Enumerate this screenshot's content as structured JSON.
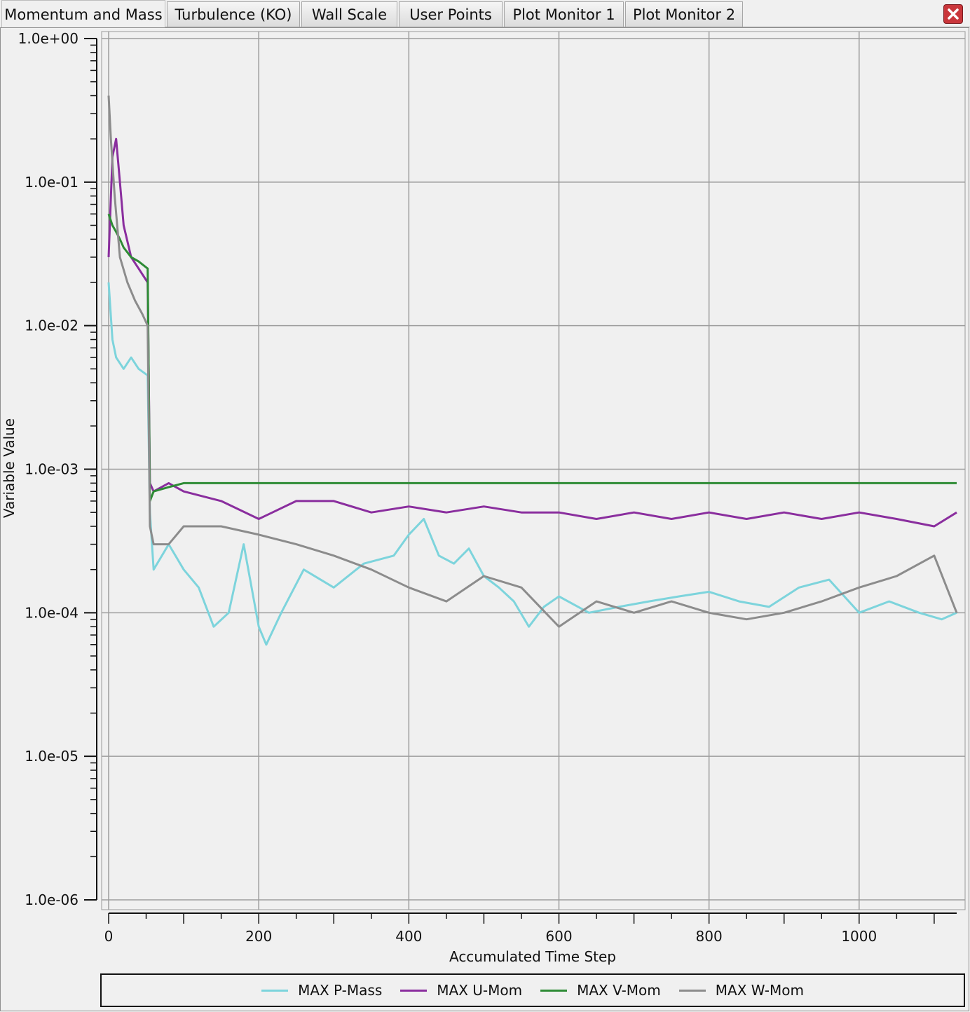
{
  "tabs": [
    {
      "label": "Momentum and Mass",
      "active": true
    },
    {
      "label": "Turbulence (KO)",
      "active": false
    },
    {
      "label": "Wall Scale",
      "active": false
    },
    {
      "label": "User Points",
      "active": false
    },
    {
      "label": "Plot Monitor 1",
      "active": false
    },
    {
      "label": "Plot Monitor 2",
      "active": false
    }
  ],
  "close_icon": "close-icon",
  "chart_data": {
    "type": "line",
    "title": "",
    "xlabel": "Accumulated Time Step",
    "ylabel": "Variable Value",
    "xlim": [
      0,
      1130
    ],
    "ylim": [
      1e-06,
      1
    ],
    "yscale": "log",
    "grid": true,
    "legend_position": "bottom",
    "x_ticks": [
      0,
      200,
      400,
      600,
      800,
      1000
    ],
    "x_tick_labels": [
      "0",
      "200",
      "400",
      "600",
      "800",
      "1000"
    ],
    "y_ticks": [
      1,
      0.1,
      0.01,
      0.001,
      0.0001,
      1e-05,
      1e-06
    ],
    "y_tick_labels": [
      "1.0e+00",
      "1.0e-01",
      "1.0e-02",
      "1.0e-03",
      "1.0e-04",
      "1.0e-05",
      "1.0e-06"
    ],
    "series": [
      {
        "name": "MAX P-Mass",
        "color": "#7dd4dc",
        "x": [
          0,
          5,
          10,
          20,
          30,
          40,
          52,
          55,
          60,
          80,
          100,
          120,
          140,
          160,
          180,
          200,
          210,
          230,
          260,
          300,
          340,
          380,
          400,
          420,
          440,
          460,
          480,
          500,
          520,
          540,
          560,
          580,
          600,
          640,
          680,
          720,
          760,
          800,
          840,
          880,
          920,
          960,
          1000,
          1040,
          1080,
          1110,
          1130
        ],
        "y": [
          0.02,
          0.008,
          0.006,
          0.005,
          0.006,
          0.005,
          0.0045,
          0.0005,
          0.0002,
          0.0003,
          0.0002,
          0.00015,
          8e-05,
          0.0001,
          0.0003,
          8e-05,
          6e-05,
          0.0001,
          0.0002,
          0.00015,
          0.00022,
          0.00025,
          0.00035,
          0.00045,
          0.00025,
          0.00022,
          0.00028,
          0.00018,
          0.00015,
          0.00012,
          8e-05,
          0.00011,
          0.00013,
          0.0001,
          0.00011,
          0.00012,
          0.00013,
          0.00014,
          0.00012,
          0.00011,
          0.00015,
          0.00017,
          0.0001,
          0.00012,
          0.0001,
          9e-05,
          0.0001
        ]
      },
      {
        "name": "MAX U-Mom",
        "color": "#8a2e9e",
        "x": [
          0,
          5,
          10,
          15,
          20,
          30,
          40,
          52,
          55,
          60,
          80,
          100,
          150,
          200,
          250,
          300,
          350,
          400,
          450,
          500,
          550,
          600,
          650,
          700,
          750,
          800,
          850,
          900,
          950,
          1000,
          1050,
          1100,
          1130
        ],
        "y": [
          0.03,
          0.15,
          0.2,
          0.1,
          0.05,
          0.03,
          0.025,
          0.02,
          0.0008,
          0.0007,
          0.0008,
          0.0007,
          0.0006,
          0.00045,
          0.0006,
          0.0006,
          0.0005,
          0.00055,
          0.0005,
          0.00055,
          0.0005,
          0.0005,
          0.00045,
          0.0005,
          0.00045,
          0.0005,
          0.00045,
          0.0005,
          0.00045,
          0.0005,
          0.00045,
          0.0004,
          0.0005
        ]
      },
      {
        "name": "MAX V-Mom",
        "color": "#2e8b35",
        "x": [
          0,
          5,
          10,
          15,
          20,
          30,
          40,
          52,
          55,
          60,
          80,
          100,
          150,
          200,
          250,
          300,
          350,
          400,
          450,
          500,
          550,
          600,
          650,
          700,
          750,
          800,
          850,
          900,
          950,
          1000,
          1050,
          1100,
          1130
        ],
        "y": [
          0.06,
          0.05,
          0.045,
          0.04,
          0.035,
          0.03,
          0.028,
          0.025,
          0.0006,
          0.0007,
          0.00075,
          0.0008,
          0.0008,
          0.0008,
          0.0008,
          0.0008,
          0.0008,
          0.0008,
          0.0008,
          0.0008,
          0.0008,
          0.0008,
          0.0008,
          0.0008,
          0.0008,
          0.0008,
          0.0008,
          0.0008,
          0.0008,
          0.0008,
          0.0008,
          0.0008,
          0.0008
        ]
      },
      {
        "name": "MAX W-Mom",
        "color": "#8c8c8c",
        "x": [
          0,
          3,
          8,
          15,
          25,
          35,
          45,
          52,
          55,
          60,
          80,
          100,
          150,
          200,
          250,
          300,
          350,
          400,
          450,
          500,
          550,
          600,
          650,
          700,
          750,
          800,
          850,
          900,
          950,
          1000,
          1050,
          1100,
          1130
        ],
        "y": [
          0.4,
          0.2,
          0.08,
          0.03,
          0.02,
          0.015,
          0.012,
          0.01,
          0.0004,
          0.0003,
          0.0003,
          0.0004,
          0.0004,
          0.00035,
          0.0003,
          0.00025,
          0.0002,
          0.00015,
          0.00012,
          0.00018,
          0.00015,
          8e-05,
          0.00012,
          0.0001,
          0.00012,
          0.0001,
          9e-05,
          0.0001,
          0.00012,
          0.00015,
          0.00018,
          0.00025,
          0.0001
        ]
      }
    ]
  }
}
